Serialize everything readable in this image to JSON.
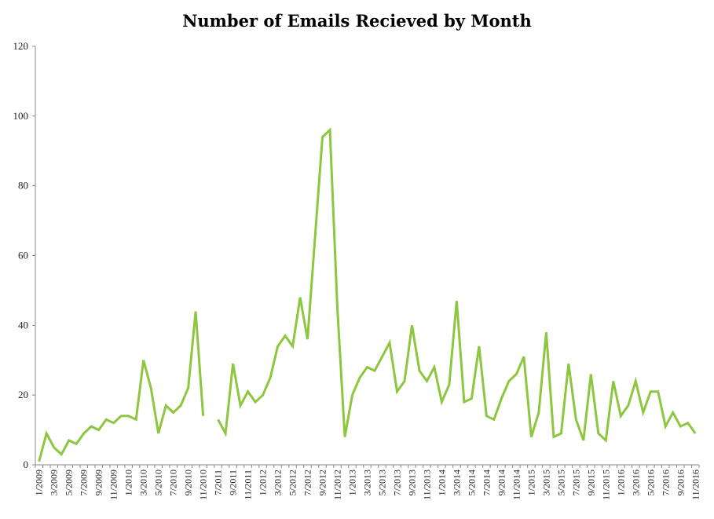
{
  "chart_data": {
    "type": "line",
    "title": "Number of Emails Recieved by Month",
    "xlabel": "",
    "ylabel": "",
    "ylim": [
      0,
      120
    ],
    "yticks": [
      0,
      20,
      40,
      60,
      80,
      100,
      120
    ],
    "grid": false,
    "legend": "none",
    "line_color": "#8dc63f",
    "x_tick_labels": [
      "1/2009",
      "3/2009",
      "5/2009",
      "7/2009",
      "9/2009",
      "11/2009",
      "1/2010",
      "3/2010",
      "5/2010",
      "7/2010",
      "9/2010",
      "11/2010",
      "7/2011",
      "9/2011",
      "11/2011",
      "1/2012",
      "3/2012",
      "5/2012",
      "7/2012",
      "9/2012",
      "11/2012",
      "1/2013",
      "3/2013",
      "5/2013",
      "7/2013",
      "9/2013",
      "11/2013",
      "1/2014",
      "3/2014",
      "5/2014",
      "7/2014",
      "9/2014",
      "11/2014",
      "1/2015",
      "3/2015",
      "5/2015",
      "7/2015",
      "9/2015",
      "11/2015",
      "1/2016",
      "3/2016",
      "5/2016",
      "7/2016",
      "9/2016",
      "11/2016"
    ],
    "series": [
      {
        "points": [
          [
            "1/2009",
            1
          ],
          [
            "2/2009",
            9
          ],
          [
            "3/2009",
            5
          ],
          [
            "4/2009",
            3
          ],
          [
            "5/2009",
            7
          ],
          [
            "6/2009",
            6
          ],
          [
            "7/2009",
            9
          ],
          [
            "8/2009",
            11
          ],
          [
            "9/2009",
            10
          ],
          [
            "10/2009",
            13
          ],
          [
            "11/2009",
            12
          ],
          [
            "12/2009",
            14
          ],
          [
            "1/2010",
            14
          ],
          [
            "2/2010",
            13
          ],
          [
            "3/2010",
            30
          ],
          [
            "4/2010",
            22
          ],
          [
            "5/2010",
            9
          ],
          [
            "6/2010",
            17
          ],
          [
            "7/2010",
            15
          ],
          [
            "8/2010",
            17
          ],
          [
            "9/2010",
            22
          ],
          [
            "10/2010",
            44
          ],
          [
            "11/2010",
            14
          ],
          [
            "12/2010",
            null
          ],
          [
            "7/2011",
            13
          ],
          [
            "8/2011",
            9
          ],
          [
            "9/2011",
            29
          ],
          [
            "10/2011",
            17
          ],
          [
            "11/2011",
            21
          ],
          [
            "12/2011",
            18
          ],
          [
            "1/2012",
            20
          ],
          [
            "2/2012",
            25
          ],
          [
            "3/2012",
            34
          ],
          [
            "4/2012",
            37
          ],
          [
            "5/2012",
            34
          ],
          [
            "6/2012",
            48
          ],
          [
            "7/2012",
            36
          ],
          [
            "8/2012",
            65
          ],
          [
            "9/2012",
            94
          ],
          [
            "10/2012",
            96
          ],
          [
            "11/2012",
            45
          ],
          [
            "12/2012",
            8
          ],
          [
            "1/2013",
            20
          ],
          [
            "2/2013",
            25
          ],
          [
            "3/2013",
            28
          ],
          [
            "4/2013",
            27
          ],
          [
            "5/2013",
            31
          ],
          [
            "6/2013",
            35
          ],
          [
            "7/2013",
            21
          ],
          [
            "8/2013",
            24
          ],
          [
            "9/2013",
            40
          ],
          [
            "10/2013",
            27
          ],
          [
            "11/2013",
            24
          ],
          [
            "12/2013",
            28
          ],
          [
            "1/2014",
            18
          ],
          [
            "2/2014",
            23
          ],
          [
            "3/2014",
            47
          ],
          [
            "4/2014",
            18
          ],
          [
            "5/2014",
            19
          ],
          [
            "6/2014",
            34
          ],
          [
            "7/2014",
            14
          ],
          [
            "8/2014",
            13
          ],
          [
            "9/2014",
            19
          ],
          [
            "10/2014",
            24
          ],
          [
            "11/2014",
            26
          ],
          [
            "12/2014",
            31
          ],
          [
            "1/2015",
            8
          ],
          [
            "2/2015",
            15
          ],
          [
            "3/2015",
            38
          ],
          [
            "4/2015",
            8
          ],
          [
            "5/2015",
            9
          ],
          [
            "6/2015",
            29
          ],
          [
            "7/2015",
            13
          ],
          [
            "8/2015",
            7
          ],
          [
            "9/2015",
            26
          ],
          [
            "10/2015",
            9
          ],
          [
            "11/2015",
            7
          ],
          [
            "12/2015",
            24
          ],
          [
            "1/2016",
            14
          ],
          [
            "2/2016",
            17
          ],
          [
            "3/2016",
            24
          ],
          [
            "4/2016",
            15
          ],
          [
            "5/2016",
            21
          ],
          [
            "6/2016",
            21
          ],
          [
            "7/2016",
            11
          ],
          [
            "8/2016",
            15
          ],
          [
            "9/2016",
            11
          ],
          [
            "10/2016",
            12
          ],
          [
            "11/2016",
            9
          ]
        ]
      }
    ]
  }
}
